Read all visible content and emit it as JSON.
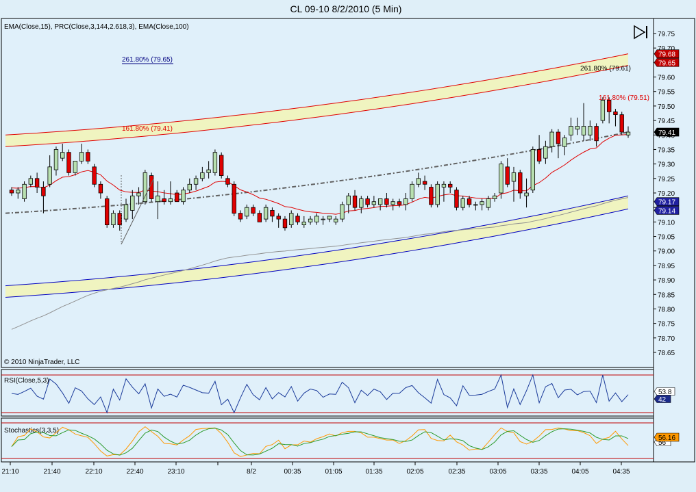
{
  "title": "CL 09-10  8/2/2010 (5 Min)",
  "colors": {
    "background": "#e0f0fa",
    "panel_border": "#000000",
    "up_candle": "#b8e0b0",
    "down_candle": "#e00000",
    "ema15": "#e00000",
    "ema100": "#909090",
    "regression_mid": "#606060",
    "channel_upper": "#e00000",
    "channel_lower": "#0000c0",
    "channel_fill": "#f0f4c0",
    "rsi_line": "#1a3a9a",
    "stoch_k": "#ff9900",
    "stoch_d": "#2a9a2a",
    "bound_line": "#c00000"
  },
  "price_panel": {
    "indicator_label": "EMA(Close,15), PRC(Close,3,144,2.618,3), EMA(Close,100)",
    "copyright": "© 2010 NinjaTrader, LLC",
    "fib_labels": [
      {
        "text": "261.80% (79.65)",
        "color": "#000080"
      },
      {
        "text": "261.80% (79.61)",
        "color": "#000000"
      },
      {
        "text": "161.80% (79.51)",
        "color": "#e00000"
      },
      {
        "text": "161.80% (79.41)",
        "color": "#e00000"
      }
    ],
    "price_tags": [
      {
        "value": "79.68",
        "bg": "#c00000",
        "fg": "#ffffff"
      },
      {
        "value": "79.65",
        "bg": "#c00000",
        "fg": "#ffffff"
      },
      {
        "value": "79.41",
        "bg": "#000000",
        "fg": "#ffffff"
      },
      {
        "value": "79.17",
        "bg": "#2020a0",
        "fg": "#ffffff"
      },
      {
        "value": "79.14",
        "bg": "#2020a0",
        "fg": "#ffffff"
      }
    ],
    "y_ticks": [
      "79.75",
      "79.70",
      "79.65",
      "79.60",
      "79.55",
      "79.50",
      "79.45",
      "79.40",
      "79.35",
      "79.30",
      "79.25",
      "79.20",
      "79.15",
      "79.10",
      "79.05",
      "79.00",
      "78.95",
      "78.90",
      "78.85",
      "78.80",
      "78.75",
      "78.70",
      "78.65"
    ]
  },
  "rsi_panel": {
    "label": "RSI(Close,5,3)",
    "tags": [
      {
        "value": "53.8",
        "bg": "#ffffff",
        "fg": "#000000"
      },
      {
        "value": "42",
        "bg": "#1a2a8a",
        "fg": "#ffffff"
      }
    ]
  },
  "stoch_panel": {
    "label": "Stochastics(3,3,5)",
    "tags": [
      {
        "value": "56.16",
        "bg": "#ff9900",
        "fg": "#000000"
      },
      {
        "value": "56",
        "bg": "#ffffff",
        "fg": "#000000"
      }
    ]
  },
  "x_ticks": [
    "21:10",
    "21:40",
    "22:10",
    "22:40",
    "23:10",
    "8/2",
    "00:35",
    "01:05",
    "01:35",
    "02:05",
    "02:35",
    "03:05",
    "03:35",
    "04:05",
    "04:35"
  ],
  "chart_data": {
    "type": "candlestick",
    "title": "CL 09-10  8/2/2010 (5 Min)",
    "ylim": [
      78.61,
      79.79
    ],
    "candles": [
      {
        "o": 79.21,
        "h": 79.22,
        "l": 79.19,
        "c": 79.2
      },
      {
        "o": 79.2,
        "h": 79.22,
        "l": 79.18,
        "c": 79.21
      },
      {
        "o": 79.18,
        "h": 79.24,
        "l": 79.17,
        "c": 79.23
      },
      {
        "o": 79.23,
        "h": 79.26,
        "l": 79.22,
        "c": 79.25
      },
      {
        "o": 79.25,
        "h": 79.27,
        "l": 79.2,
        "c": 79.22
      },
      {
        "o": 79.22,
        "h": 79.24,
        "l": 79.13,
        "c": 79.19
      },
      {
        "o": 79.23,
        "h": 79.33,
        "l": 79.22,
        "c": 79.29
      },
      {
        "o": 79.28,
        "h": 79.36,
        "l": 79.26,
        "c": 79.35
      },
      {
        "o": 79.32,
        "h": 79.37,
        "l": 79.31,
        "c": 79.34
      },
      {
        "o": 79.34,
        "h": 79.35,
        "l": 79.26,
        "c": 79.27
      },
      {
        "o": 79.27,
        "h": 79.31,
        "l": 79.26,
        "c": 79.31
      },
      {
        "o": 79.31,
        "h": 79.37,
        "l": 79.3,
        "c": 79.34
      },
      {
        "o": 79.34,
        "h": 79.35,
        "l": 79.3,
        "c": 79.31
      },
      {
        "o": 79.29,
        "h": 79.3,
        "l": 79.22,
        "c": 79.23
      },
      {
        "o": 79.23,
        "h": 79.24,
        "l": 79.18,
        "c": 79.2
      },
      {
        "o": 79.18,
        "h": 79.19,
        "l": 79.08,
        "c": 79.09
      },
      {
        "o": 79.09,
        "h": 79.14,
        "l": 79.08,
        "c": 79.13
      },
      {
        "o": 79.13,
        "h": 79.14,
        "l": 79.07,
        "c": 79.09
      },
      {
        "o": 79.11,
        "h": 79.18,
        "l": 79.1,
        "c": 79.16
      },
      {
        "o": 79.14,
        "h": 79.21,
        "l": 79.11,
        "c": 79.19
      },
      {
        "o": 79.19,
        "h": 79.22,
        "l": 79.16,
        "c": 79.2
      },
      {
        "o": 79.17,
        "h": 79.28,
        "l": 79.16,
        "c": 79.27
      },
      {
        "o": 79.26,
        "h": 79.27,
        "l": 79.17,
        "c": 79.18
      },
      {
        "o": 79.17,
        "h": 79.24,
        "l": 79.11,
        "c": 79.19
      },
      {
        "o": 79.18,
        "h": 79.21,
        "l": 79.16,
        "c": 79.17
      },
      {
        "o": 79.17,
        "h": 79.24,
        "l": 79.16,
        "c": 79.18
      },
      {
        "o": 79.2,
        "h": 79.21,
        "l": 79.17,
        "c": 79.17
      },
      {
        "o": 79.17,
        "h": 79.22,
        "l": 79.16,
        "c": 79.21
      },
      {
        "o": 79.21,
        "h": 79.25,
        "l": 79.2,
        "c": 79.23
      },
      {
        "o": 79.23,
        "h": 79.26,
        "l": 79.21,
        "c": 79.25
      },
      {
        "o": 79.25,
        "h": 79.29,
        "l": 79.24,
        "c": 79.27
      },
      {
        "o": 79.27,
        "h": 79.31,
        "l": 79.25,
        "c": 79.28
      },
      {
        "o": 79.27,
        "h": 79.35,
        "l": 79.26,
        "c": 79.34
      },
      {
        "o": 79.33,
        "h": 79.34,
        "l": 79.25,
        "c": 79.26
      },
      {
        "o": 79.25,
        "h": 79.26,
        "l": 79.22,
        "c": 79.23
      },
      {
        "o": 79.23,
        "h": 79.24,
        "l": 79.12,
        "c": 79.13
      },
      {
        "o": 79.13,
        "h": 79.14,
        "l": 79.1,
        "c": 79.11
      },
      {
        "o": 79.12,
        "h": 79.16,
        "l": 79.11,
        "c": 79.15
      },
      {
        "o": 79.15,
        "h": 79.16,
        "l": 79.12,
        "c": 79.13
      },
      {
        "o": 79.13,
        "h": 79.14,
        "l": 79.1,
        "c": 79.1
      },
      {
        "o": 79.11,
        "h": 79.16,
        "l": 79.1,
        "c": 79.15
      },
      {
        "o": 79.14,
        "h": 79.15,
        "l": 79.1,
        "c": 79.12
      },
      {
        "o": 79.12,
        "h": 79.13,
        "l": 79.08,
        "c": 79.11
      },
      {
        "o": 79.11,
        "h": 79.12,
        "l": 79.07,
        "c": 79.08
      },
      {
        "o": 79.09,
        "h": 79.14,
        "l": 79.08,
        "c": 79.13
      },
      {
        "o": 79.12,
        "h": 79.13,
        "l": 79.09,
        "c": 79.1
      },
      {
        "o": 79.09,
        "h": 79.12,
        "l": 79.08,
        "c": 79.1
      },
      {
        "o": 79.1,
        "h": 79.12,
        "l": 79.09,
        "c": 79.11
      },
      {
        "o": 79.1,
        "h": 79.13,
        "l": 79.09,
        "c": 79.12
      },
      {
        "o": 79.11,
        "h": 79.12,
        "l": 79.09,
        "c": 79.11
      },
      {
        "o": 79.11,
        "h": 79.12,
        "l": 79.1,
        "c": 79.12
      },
      {
        "o": 79.1,
        "h": 79.12,
        "l": 79.09,
        "c": 79.11
      },
      {
        "o": 79.11,
        "h": 79.17,
        "l": 79.1,
        "c": 79.16
      },
      {
        "o": 79.16,
        "h": 79.2,
        "l": 79.13,
        "c": 79.19
      },
      {
        "o": 79.19,
        "h": 79.21,
        "l": 79.14,
        "c": 79.15
      },
      {
        "o": 79.15,
        "h": 79.19,
        "l": 79.13,
        "c": 79.18
      },
      {
        "o": 79.18,
        "h": 79.19,
        "l": 79.15,
        "c": 79.16
      },
      {
        "o": 79.16,
        "h": 79.19,
        "l": 79.15,
        "c": 79.17
      },
      {
        "o": 79.16,
        "h": 79.18,
        "l": 79.14,
        "c": 79.18
      },
      {
        "o": 79.18,
        "h": 79.2,
        "l": 79.15,
        "c": 79.16
      },
      {
        "o": 79.16,
        "h": 79.18,
        "l": 79.14,
        "c": 79.17
      },
      {
        "o": 79.17,
        "h": 79.18,
        "l": 79.15,
        "c": 79.16
      },
      {
        "o": 79.16,
        "h": 79.2,
        "l": 79.14,
        "c": 79.18
      },
      {
        "o": 79.18,
        "h": 79.24,
        "l": 79.17,
        "c": 79.23
      },
      {
        "o": 79.23,
        "h": 79.27,
        "l": 79.22,
        "c": 79.25
      },
      {
        "o": 79.24,
        "h": 79.26,
        "l": 79.21,
        "c": 79.23
      },
      {
        "o": 79.22,
        "h": 79.23,
        "l": 79.15,
        "c": 79.16
      },
      {
        "o": 79.16,
        "h": 79.24,
        "l": 79.15,
        "c": 79.23
      },
      {
        "o": 79.22,
        "h": 79.24,
        "l": 79.17,
        "c": 79.23
      },
      {
        "o": 79.23,
        "h": 79.24,
        "l": 79.2,
        "c": 79.22
      },
      {
        "o": 79.21,
        "h": 79.22,
        "l": 79.14,
        "c": 79.15
      },
      {
        "o": 79.15,
        "h": 79.19,
        "l": 79.14,
        "c": 79.18
      },
      {
        "o": 79.18,
        "h": 79.19,
        "l": 79.15,
        "c": 79.16
      },
      {
        "o": 79.16,
        "h": 79.17,
        "l": 79.14,
        "c": 79.16
      },
      {
        "o": 79.16,
        "h": 79.18,
        "l": 79.14,
        "c": 79.17
      },
      {
        "o": 79.15,
        "h": 79.19,
        "l": 79.14,
        "c": 79.18
      },
      {
        "o": 79.18,
        "h": 79.2,
        "l": 79.17,
        "c": 79.19
      },
      {
        "o": 79.2,
        "h": 79.31,
        "l": 79.18,
        "c": 79.3
      },
      {
        "o": 79.29,
        "h": 79.32,
        "l": 79.22,
        "c": 79.23
      },
      {
        "o": 79.24,
        "h": 79.29,
        "l": 79.17,
        "c": 79.27
      },
      {
        "o": 79.27,
        "h": 79.28,
        "l": 79.18,
        "c": 79.2
      },
      {
        "o": 79.19,
        "h": 79.25,
        "l": 79.15,
        "c": 79.2
      },
      {
        "o": 79.21,
        "h": 79.36,
        "l": 79.2,
        "c": 79.35
      },
      {
        "o": 79.35,
        "h": 79.4,
        "l": 79.3,
        "c": 79.31
      },
      {
        "o": 79.32,
        "h": 79.38,
        "l": 79.3,
        "c": 79.36
      },
      {
        "o": 79.36,
        "h": 79.42,
        "l": 79.34,
        "c": 79.41
      },
      {
        "o": 79.41,
        "h": 79.42,
        "l": 79.32,
        "c": 79.37
      },
      {
        "o": 79.36,
        "h": 79.4,
        "l": 79.33,
        "c": 79.39
      },
      {
        "o": 79.4,
        "h": 79.46,
        "l": 79.38,
        "c": 79.43
      },
      {
        "o": 79.42,
        "h": 79.46,
        "l": 79.4,
        "c": 79.43
      },
      {
        "o": 79.4,
        "h": 79.51,
        "l": 79.38,
        "c": 79.43
      },
      {
        "o": 79.4,
        "h": 79.45,
        "l": 79.38,
        "c": 79.43
      },
      {
        "o": 79.43,
        "h": 79.44,
        "l": 79.36,
        "c": 79.38
      },
      {
        "o": 79.45,
        "h": 79.53,
        "l": 79.44,
        "c": 79.52
      },
      {
        "o": 79.52,
        "h": 79.53,
        "l": 79.44,
        "c": 79.48
      },
      {
        "o": 79.48,
        "h": 79.49,
        "l": 79.43,
        "c": 79.47
      },
      {
        "o": 79.47,
        "h": 79.48,
        "l": 79.4,
        "c": 79.41
      },
      {
        "o": 79.4,
        "h": 79.43,
        "l": 79.39,
        "c": 79.41
      }
    ]
  }
}
